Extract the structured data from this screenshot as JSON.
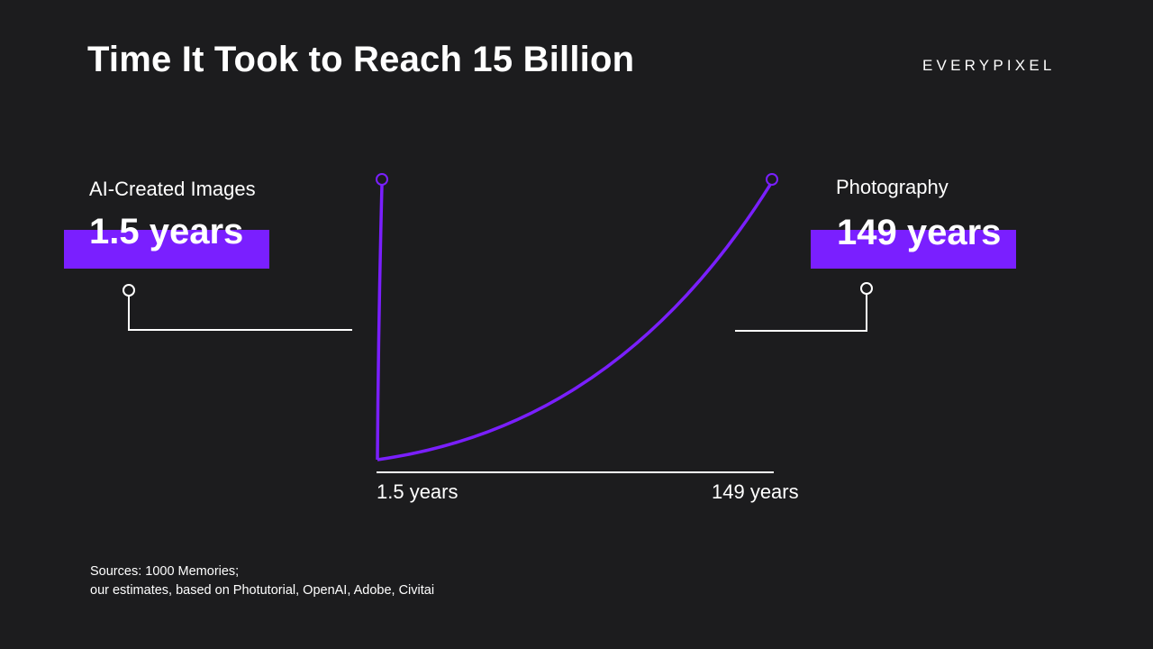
{
  "title": "Time It Took to Reach 15 Billion",
  "logo": "EVERYPIXEL",
  "left_callout": {
    "label": "AI-Created Images",
    "value": "1.5 years"
  },
  "right_callout": {
    "label": "Photography",
    "value": "149 years"
  },
  "sources": {
    "line1": "Sources: 1000 Memories;",
    "line2": "our estimates, based on Photutorial, OpenAI, Adobe, Civitai"
  },
  "colors": {
    "accent": "#7a1fff",
    "background": "#1c1c1e",
    "text": "#ffffff"
  },
  "chart_data": {
    "type": "line",
    "title": "Time It Took to Reach 15 Billion",
    "x_tick_labels": [
      "1.5 years",
      "149 years"
    ],
    "series": [
      {
        "name": "AI-Created Images",
        "x": [
          0,
          1.5
        ],
        "y": [
          0,
          15
        ],
        "end_label": "1.5 years"
      },
      {
        "name": "Photography",
        "x": [
          0,
          149
        ],
        "y": [
          0,
          15
        ],
        "end_label": "149 years"
      }
    ],
    "y_unit": "billion images",
    "grid": false,
    "legend": "none"
  }
}
